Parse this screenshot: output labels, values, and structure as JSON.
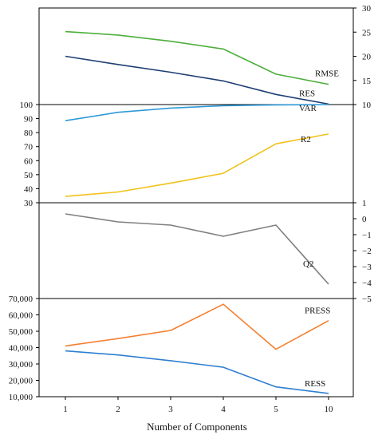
{
  "chart_data": {
    "type": "line",
    "categories": [
      "1",
      "2",
      "3",
      "4",
      "5",
      "10"
    ],
    "xlabel": "Number of Components",
    "panels": [
      {
        "id": "rmse-res",
        "y_axis_side": "right",
        "ylim": [
          10,
          30
        ],
        "yticks": [
          "10",
          "15",
          "20",
          "25",
          "30"
        ],
        "series": [
          {
            "name": "RMSE",
            "color": "#4daf3c",
            "values": [
              25.1,
              24.4,
              23.1,
              21.5,
              16.3,
              14.2
            ]
          },
          {
            "name": "RES",
            "color": "#1f3f74",
            "values": [
              20.0,
              18.3,
              16.7,
              14.9,
              12.1,
              10.1
            ]
          }
        ]
      },
      {
        "id": "var-r2",
        "y_axis_side": "left",
        "ylim": [
          30,
          100
        ],
        "yticks": [
          "30",
          "40",
          "50",
          "60",
          "70",
          "80",
          "90",
          "100"
        ],
        "series": [
          {
            "name": "VAR",
            "color": "#2e9ad8",
            "values": [
              88.5,
              94.5,
              97.5,
              99.2,
              99.8,
              100
            ]
          },
          {
            "name": "R2",
            "color": "#f2c21a",
            "values": [
              34.5,
              37.7,
              44.0,
              51.0,
              72.0,
              79.0
            ]
          }
        ]
      },
      {
        "id": "q2",
        "y_axis_side": "right",
        "ylim": [
          -5,
          1
        ],
        "yticks": [
          "1",
          "0",
          "−1",
          "−2",
          "−3",
          "−4",
          "−5"
        ],
        "series": [
          {
            "name": "Q2",
            "color": "#7f7f7f",
            "values": [
              0.3,
              -0.2,
              -0.4,
              -1.1,
              -0.4,
              -4.1
            ]
          }
        ]
      },
      {
        "id": "press-ress",
        "y_axis_side": "left",
        "ylim": [
          10000,
          70000
        ],
        "yticks": [
          "10,000",
          "20,000",
          "30,000",
          "40,000",
          "50,000",
          "60,000",
          "70,000"
        ],
        "series": [
          {
            "name": "PRESS",
            "color": "#f47f2f",
            "values": [
              41000,
              45500,
              50500,
              66500,
              39000,
              56500
            ]
          },
          {
            "name": "RESS",
            "color": "#2f7fd0",
            "values": [
              38000,
              35500,
              32000,
              28000,
              16000,
              12000
            ]
          }
        ]
      }
    ]
  }
}
